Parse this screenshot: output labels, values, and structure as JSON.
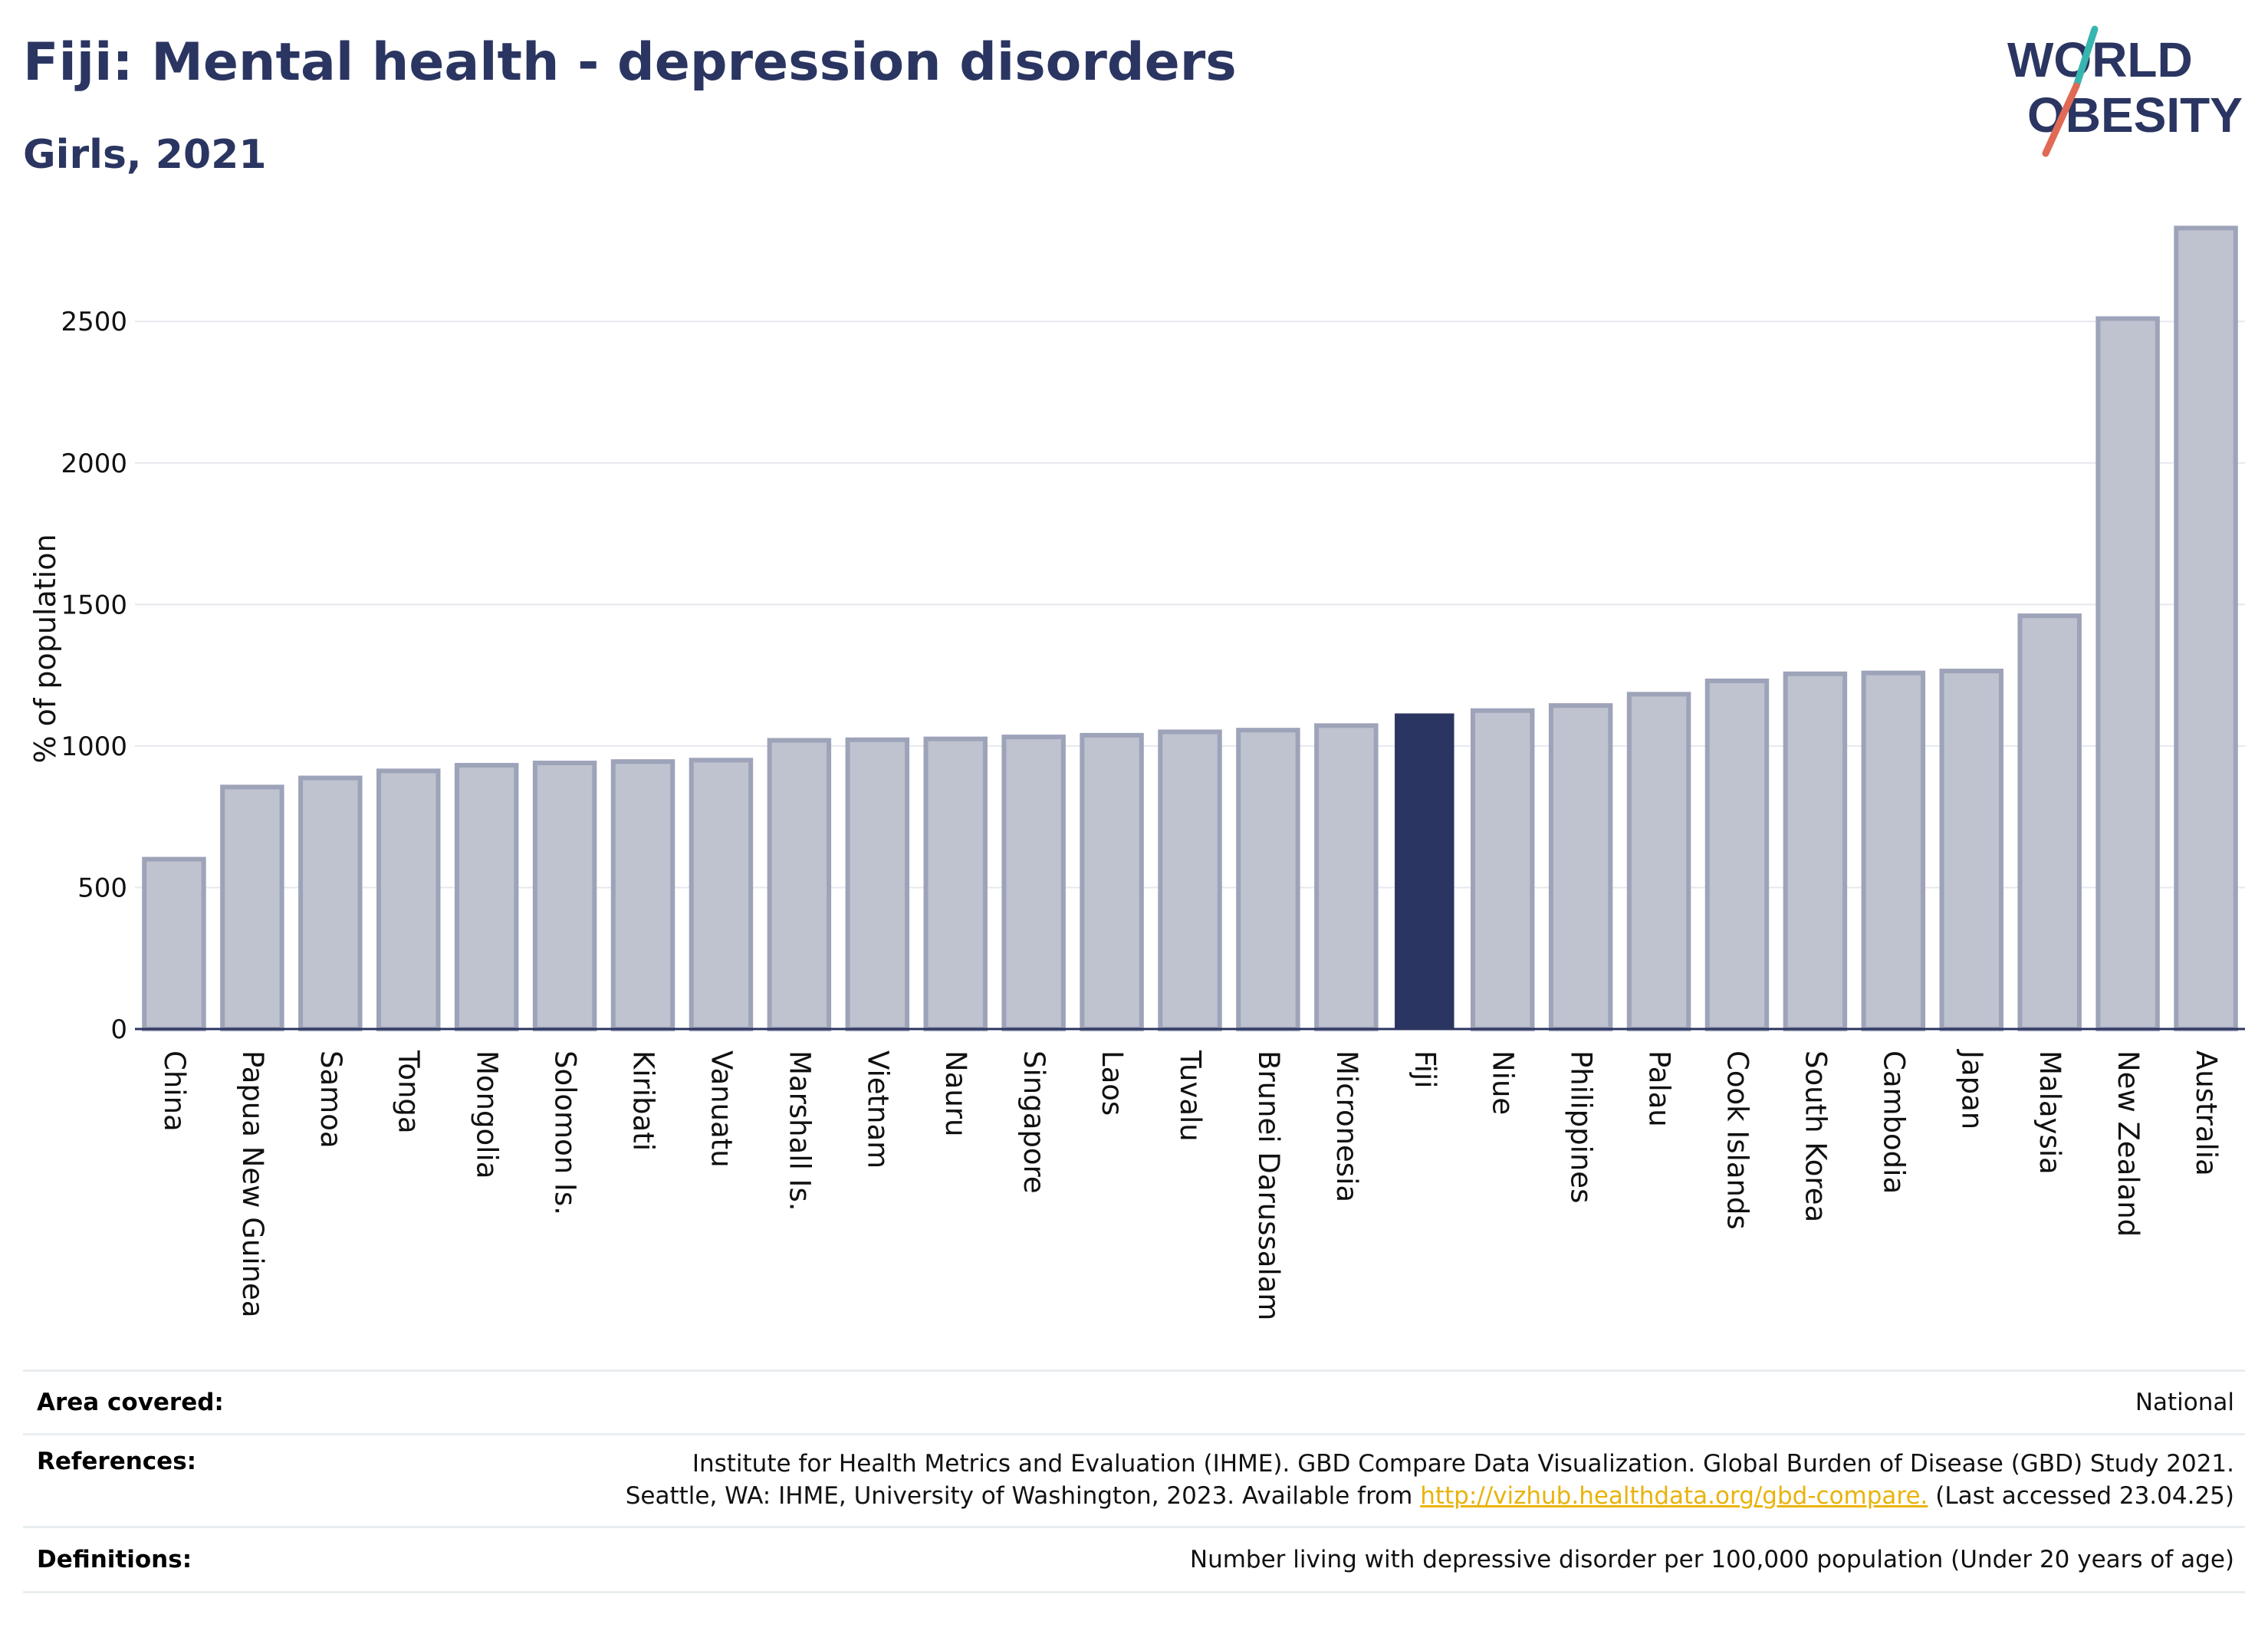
{
  "header": {
    "title": "Fiji: Mental health - depression disorders",
    "subtitle": "Girls, 2021"
  },
  "logo": {
    "line1": "WORLD",
    "line2": "OBESITY"
  },
  "colors": {
    "highlight_bar": "#2b3561",
    "other_bar": "#bfc2cf",
    "other_bar_border": "#9da3b8",
    "text": "#2b3561",
    "link": "#e9b30b"
  },
  "chart_data": {
    "type": "bar",
    "ylabel": "% of population",
    "ylim": [
      0,
      2850
    ],
    "yticks": [
      0,
      500,
      1000,
      1500,
      2000,
      2500
    ],
    "grid": true,
    "highlight": "Fiji",
    "categories": [
      "China",
      "Papua New Guinea",
      "Samoa",
      "Tonga",
      "Mongolia",
      "Solomon Is.",
      "Kiribati",
      "Vanuatu",
      "Marshall Is.",
      "Vietnam",
      "Nauru",
      "Singapore",
      "Laos",
      "Tuvalu",
      "Brunei Darussalam",
      "Micronesia",
      "Fiji",
      "Niue",
      "Philippines",
      "Palau",
      "Cook Islands",
      "South Korea",
      "Cambodia",
      "Japan",
      "Malaysia",
      "New Zealand",
      "Australia"
    ],
    "values": [
      600,
      855,
      887,
      912,
      932,
      940,
      945,
      950,
      1020,
      1022,
      1025,
      1032,
      1038,
      1050,
      1056,
      1072,
      1115,
      1125,
      1143,
      1183,
      1230,
      1255,
      1258,
      1265,
      1460,
      2510,
      2830
    ]
  },
  "footer": {
    "area_label": "Area covered:",
    "area_value": "National",
    "references_label": "References:",
    "references_line1": "Institute for Health Metrics and Evaluation (IHME). GBD Compare Data Visualization. Global Burden of Disease (GBD) Study 2021.",
    "references_line2_pre": "Seattle, WA: IHME, University of Washington, 2023. Available from ",
    "references_link": "http://vizhub.healthdata.org/gbd-compare.",
    "references_line2_post": " (Last accessed 23.04.25)",
    "definitions_label": "Definitions:",
    "definitions_value": "Number living with depressive disorder per 100,000 population (Under 20 years of age)"
  }
}
